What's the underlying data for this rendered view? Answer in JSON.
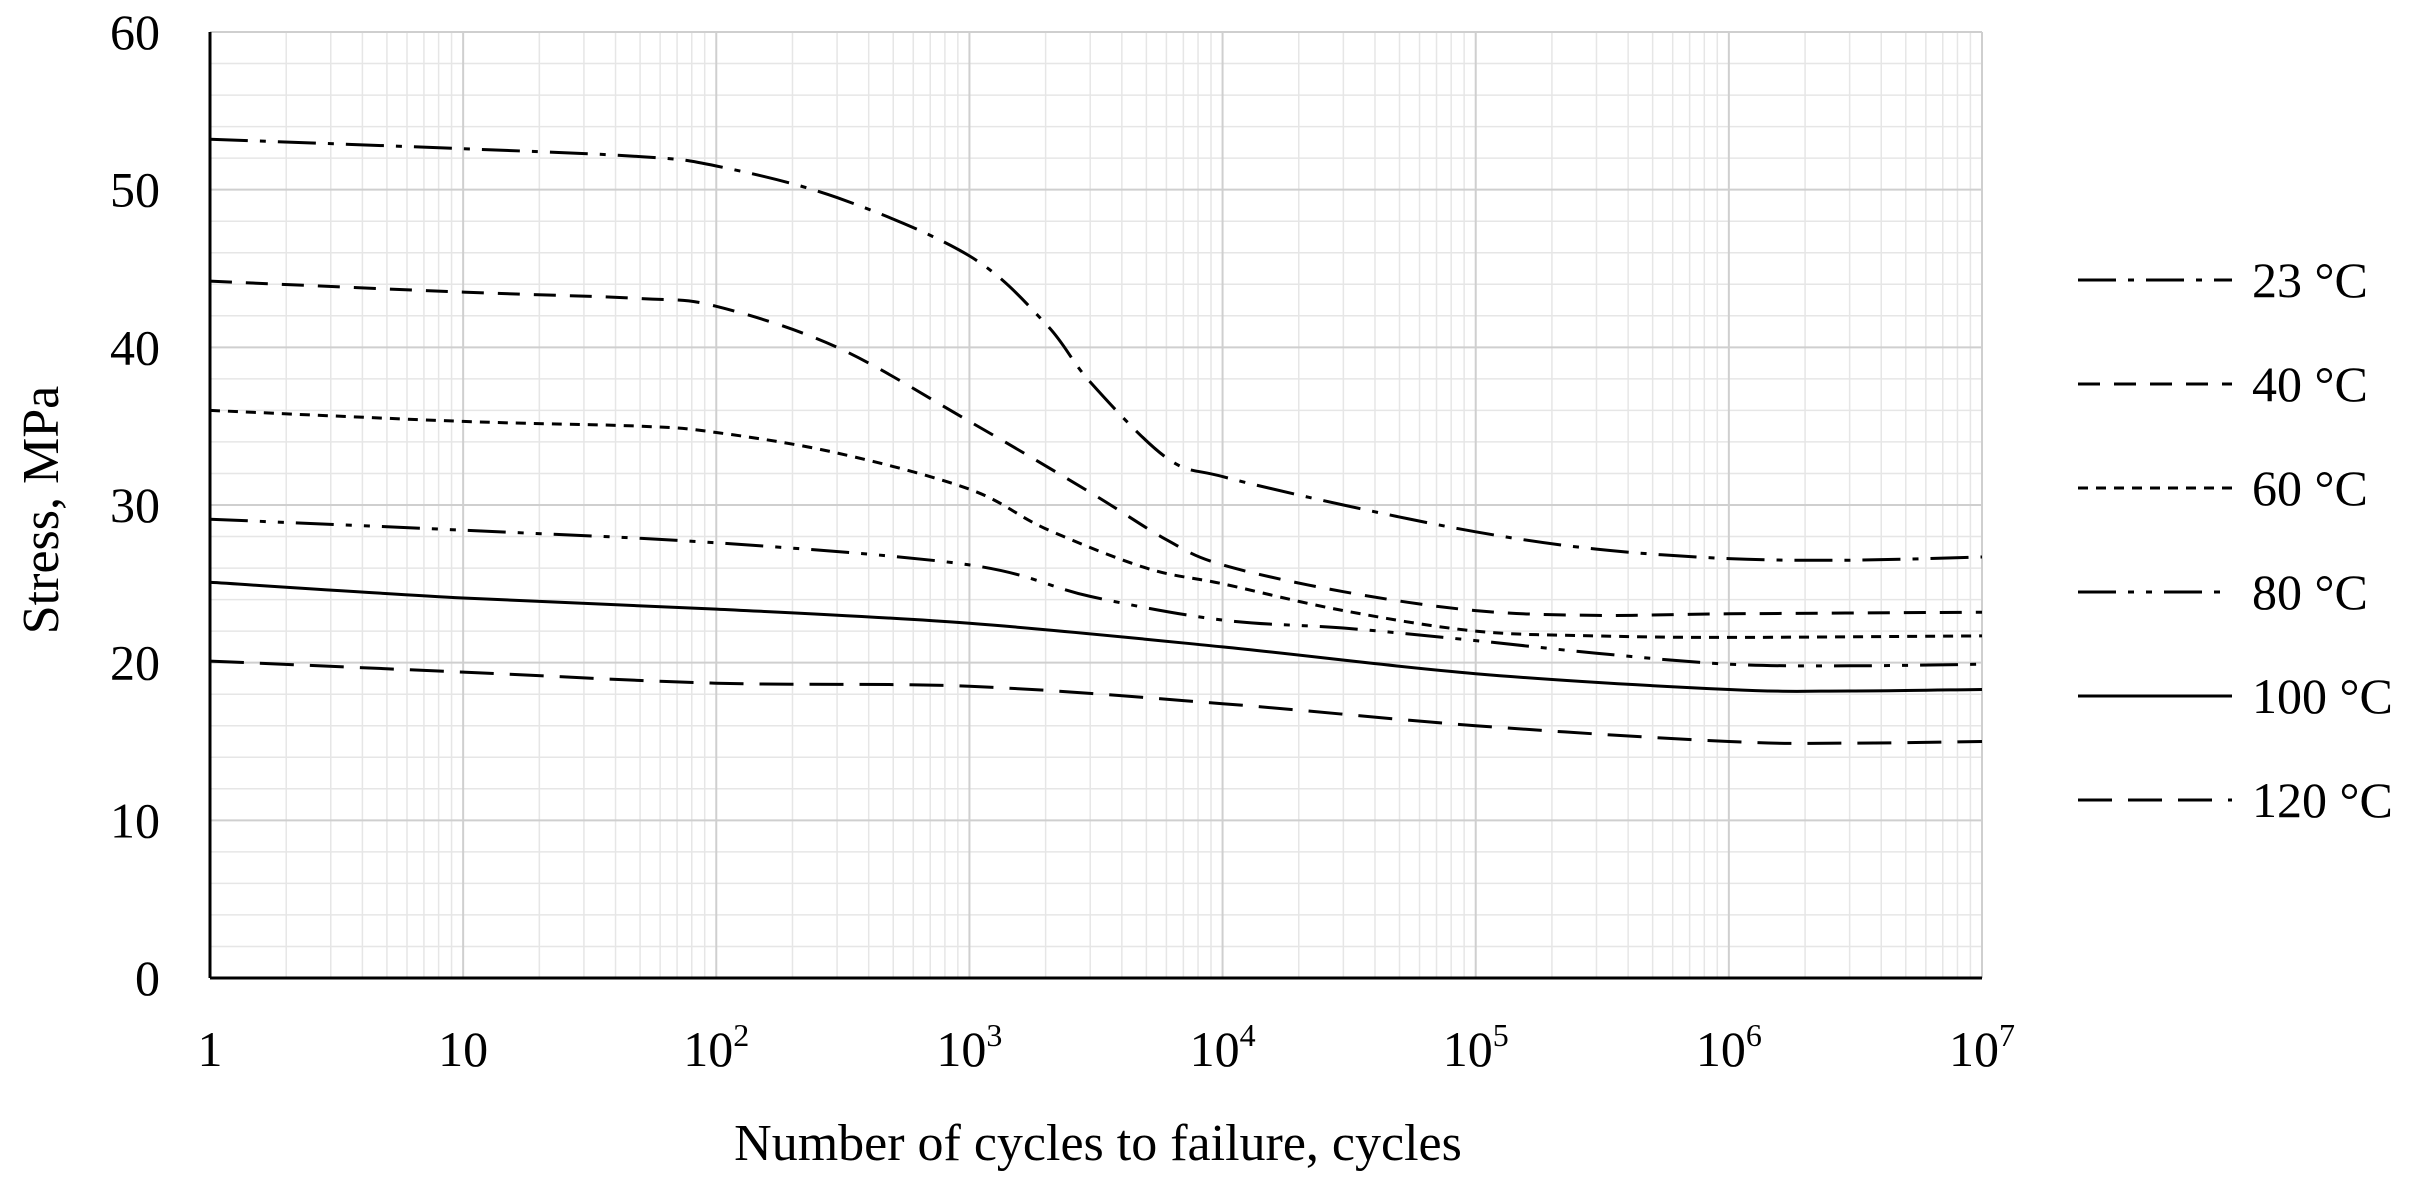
{
  "chart_data": {
    "type": "line",
    "title": "",
    "xlabel": "Number of cycles to failure, cycles",
    "ylabel": "Stress, MPa",
    "xscale": "log",
    "xlim": [
      1,
      10000000
    ],
    "ylim": [
      0,
      60
    ],
    "grid": true,
    "legend_position": "right",
    "x_ticks": [
      {
        "value": 1,
        "base": "1",
        "exp": ""
      },
      {
        "value": 10,
        "base": "10",
        "exp": ""
      },
      {
        "value": 100,
        "base": "10",
        "exp": "2"
      },
      {
        "value": 1000,
        "base": "10",
        "exp": "3"
      },
      {
        "value": 10000,
        "base": "10",
        "exp": "4"
      },
      {
        "value": 100000,
        "base": "10",
        "exp": "5"
      },
      {
        "value": 1000000,
        "base": "10",
        "exp": "6"
      },
      {
        "value": 10000000,
        "base": "10",
        "exp": "7"
      }
    ],
    "y_ticks": [
      0,
      10,
      20,
      30,
      40,
      50,
      60
    ],
    "series": [
      {
        "name": "23 °C",
        "dash": "38,12,6,12",
        "points": [
          [
            1,
            53.2
          ],
          [
            10,
            52.6
          ],
          [
            50,
            52.1
          ],
          [
            100,
            51.5
          ],
          [
            300,
            49.5
          ],
          [
            1000,
            45.8
          ],
          [
            2000,
            41.5
          ],
          [
            3000,
            37.8
          ],
          [
            6000,
            33.0
          ],
          [
            10000,
            31.8
          ],
          [
            30000,
            30.0
          ],
          [
            100000,
            28.3
          ],
          [
            300000,
            27.2
          ],
          [
            1000000,
            26.6
          ],
          [
            3000000,
            26.5
          ],
          [
            10000000,
            26.7
          ]
        ]
      },
      {
        "name": "40 °C",
        "dash": "22,14",
        "points": [
          [
            1,
            44.2
          ],
          [
            10,
            43.5
          ],
          [
            50,
            43.1
          ],
          [
            100,
            42.6
          ],
          [
            300,
            40.0
          ],
          [
            1000,
            35.3
          ],
          [
            3000,
            30.8
          ],
          [
            6000,
            27.8
          ],
          [
            10000,
            26.2
          ],
          [
            30000,
            24.5
          ],
          [
            100000,
            23.3
          ],
          [
            300000,
            23.0
          ],
          [
            1000000,
            23.1
          ],
          [
            10000000,
            23.2
          ]
        ]
      },
      {
        "name": "60 °C",
        "dash": "10,8",
        "points": [
          [
            1,
            36.0
          ],
          [
            10,
            35.3
          ],
          [
            50,
            35.0
          ],
          [
            100,
            34.6
          ],
          [
            300,
            33.3
          ],
          [
            1000,
            31.0
          ],
          [
            2000,
            28.5
          ],
          [
            5000,
            26.0
          ],
          [
            10000,
            25.0
          ],
          [
            30000,
            23.3
          ],
          [
            100000,
            22.0
          ],
          [
            300000,
            21.7
          ],
          [
            1000000,
            21.6
          ],
          [
            10000000,
            21.7
          ]
        ]
      },
      {
        "name": "80 °C",
        "dash": "38,12,6,12,6,12",
        "points": [
          [
            1,
            29.1
          ],
          [
            10,
            28.4
          ],
          [
            100,
            27.6
          ],
          [
            1000,
            26.2
          ],
          [
            3000,
            24.2
          ],
          [
            10000,
            22.7
          ],
          [
            30000,
            22.2
          ],
          [
            100000,
            21.4
          ],
          [
            300000,
            20.6
          ],
          [
            1000000,
            19.9
          ],
          [
            3000000,
            19.8
          ],
          [
            10000000,
            19.9
          ]
        ]
      },
      {
        "name": "100 °C",
        "dash": "",
        "points": [
          [
            1,
            25.1
          ],
          [
            10,
            24.1
          ],
          [
            100,
            23.4
          ],
          [
            1000,
            22.5
          ],
          [
            10000,
            21.0
          ],
          [
            100000,
            19.3
          ],
          [
            1000000,
            18.3
          ],
          [
            3000000,
            18.2
          ],
          [
            10000000,
            18.3
          ]
        ]
      },
      {
        "name": "120 °C",
        "dash": "34,16",
        "points": [
          [
            1,
            20.1
          ],
          [
            10,
            19.4
          ],
          [
            100,
            18.7
          ],
          [
            1000,
            18.5
          ],
          [
            10000,
            17.4
          ],
          [
            100000,
            16.0
          ],
          [
            1000000,
            15.0
          ],
          [
            3000000,
            14.9
          ],
          [
            10000000,
            15.0
          ]
        ]
      }
    ]
  }
}
